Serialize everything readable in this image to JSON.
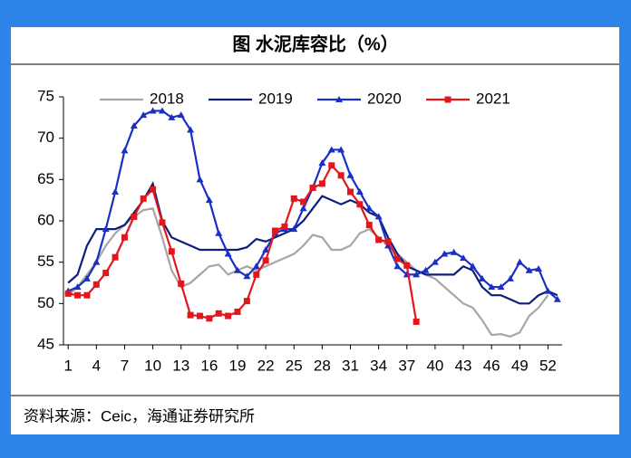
{
  "chart_data": {
    "type": "line",
    "title": "图  水泥库容比（%）",
    "source": "资料来源：Ceic，海通证券研究所",
    "x": [
      1,
      2,
      3,
      4,
      5,
      6,
      7,
      8,
      9,
      10,
      11,
      12,
      13,
      14,
      15,
      16,
      17,
      18,
      19,
      20,
      21,
      22,
      23,
      24,
      25,
      26,
      27,
      28,
      29,
      30,
      31,
      32,
      33,
      34,
      35,
      36,
      37,
      38,
      39,
      40,
      41,
      42,
      43,
      44,
      45,
      46,
      47,
      48,
      49,
      50,
      51,
      52,
      53
    ],
    "xlim": [
      0.5,
      53.5
    ],
    "xticks": [
      1,
      4,
      7,
      10,
      13,
      16,
      19,
      22,
      25,
      28,
      31,
      34,
      37,
      40,
      43,
      46,
      49,
      52
    ],
    "ylim": [
      45,
      75
    ],
    "yticks": [
      45,
      50,
      55,
      60,
      65,
      70,
      75
    ],
    "grid": false,
    "legend": "top",
    "series": [
      {
        "name": "2018",
        "color": "#a6a6a6",
        "values": [
          51,
          52,
          53.5,
          55,
          57,
          58.5,
          59.5,
          60.5,
          61.3,
          61.5,
          58,
          54,
          52,
          52.5,
          53.5,
          54.5,
          54.7,
          53.5,
          54,
          54.5,
          54,
          54.5,
          55,
          55.5,
          56,
          57,
          58.3,
          58,
          56.5,
          56.5,
          57,
          58.5,
          59,
          58,
          57,
          56,
          55,
          54,
          53.5,
          53,
          52,
          51,
          50,
          49.5,
          48,
          46.2,
          46.3,
          46,
          46.5,
          48.5,
          49.5,
          51,
          null
        ]
      },
      {
        "name": "2019",
        "color": "#0d1f7a",
        "values": [
          52.5,
          53.5,
          57,
          59,
          59,
          59,
          59.5,
          61,
          62.5,
          64.5,
          60,
          58,
          57.5,
          57,
          56.5,
          56.5,
          56.5,
          56.5,
          56.5,
          56.8,
          57.8,
          57.5,
          58,
          58.5,
          59,
          60,
          61.5,
          63,
          62.5,
          62,
          62.5,
          62,
          61,
          60.5,
          58,
          56,
          54.5,
          54,
          53.5,
          53.5,
          53.5,
          53.5,
          54.5,
          54,
          52,
          51,
          51,
          50.5,
          50,
          50,
          51,
          51.5,
          51
        ]
      },
      {
        "name": "2020",
        "color": "#1a2fc4",
        "marker": "triangle",
        "values": [
          51.5,
          52,
          53,
          55,
          59,
          63.5,
          68.5,
          71.5,
          72.8,
          73.3,
          73.3,
          72.5,
          72.8,
          71,
          65,
          62.5,
          58.5,
          56,
          54,
          53.3,
          54.5,
          56.5,
          58.5,
          59,
          59,
          61.5,
          64,
          67,
          68.6,
          68.6,
          65.5,
          63.5,
          61.5,
          60.5,
          57,
          54.5,
          53.5,
          53.5,
          54,
          55,
          56,
          56.2,
          55.5,
          54.5,
          53,
          52,
          52,
          53,
          55,
          54,
          54.2,
          51.5,
          50.5
        ]
      },
      {
        "name": "2021",
        "color": "#e3161c",
        "marker": "square",
        "values": [
          51.2,
          51,
          51,
          52.3,
          53.7,
          55.6,
          58,
          60.5,
          62.7,
          63.8,
          59.8,
          56.3,
          52.4,
          48.6,
          48.5,
          48.2,
          48.8,
          48.5,
          49,
          50.3,
          53.5,
          55.2,
          58.8,
          59.3,
          62.7,
          62.3,
          64,
          64.5,
          66.7,
          65.5,
          63.5,
          62,
          59.5,
          57.7,
          57.5,
          55.4,
          54.6,
          47.8,
          null,
          null,
          null,
          null,
          null,
          null,
          null,
          null,
          null,
          null,
          null,
          null,
          null,
          null,
          null
        ]
      }
    ]
  }
}
